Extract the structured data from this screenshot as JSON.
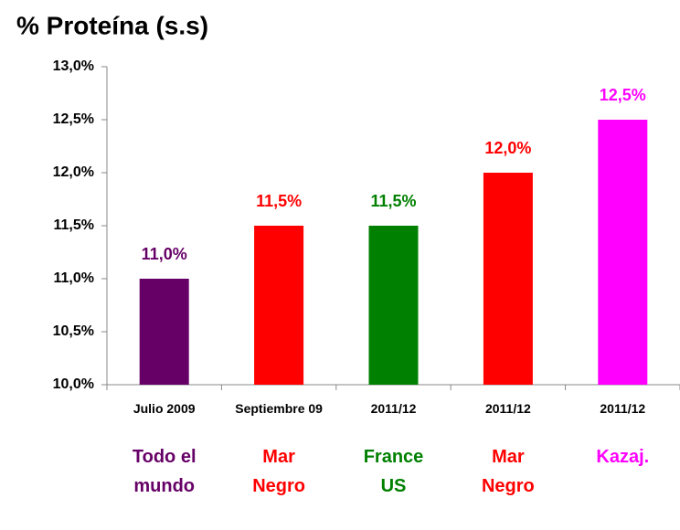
{
  "chart_data": {
    "type": "bar",
    "title": "% Proteína (s.s)",
    "categories": [
      "Julio 2009",
      "Septiembre 09",
      "2011/12",
      "2011/12",
      "2011/12"
    ],
    "regions": [
      "Todo el mundo",
      "Mar Negro",
      "France US",
      "Mar Negro",
      "Kazaj."
    ],
    "values": [
      11.0,
      11.5,
      11.5,
      12.0,
      12.5
    ],
    "value_labels": [
      "11,0%",
      "11,5%",
      "11,5%",
      "12,0%",
      "12,5%"
    ],
    "colors": [
      "#660066",
      "#ff0000",
      "#008000",
      "#ff0000",
      "#ff00ff"
    ],
    "ylim": [
      10,
      13
    ],
    "yticks": [
      {
        "value": 10,
        "label": "10,0%"
      },
      {
        "value": 10.5,
        "label": "10,5%"
      },
      {
        "value": 11,
        "label": "11,0%"
      },
      {
        "value": 11.5,
        "label": "11,5%"
      },
      {
        "value": 12,
        "label": "12,0%"
      },
      {
        "value": 12.5,
        "label": "12,5%"
      },
      {
        "value": 13,
        "label": "13,0%"
      }
    ],
    "grid": false
  }
}
